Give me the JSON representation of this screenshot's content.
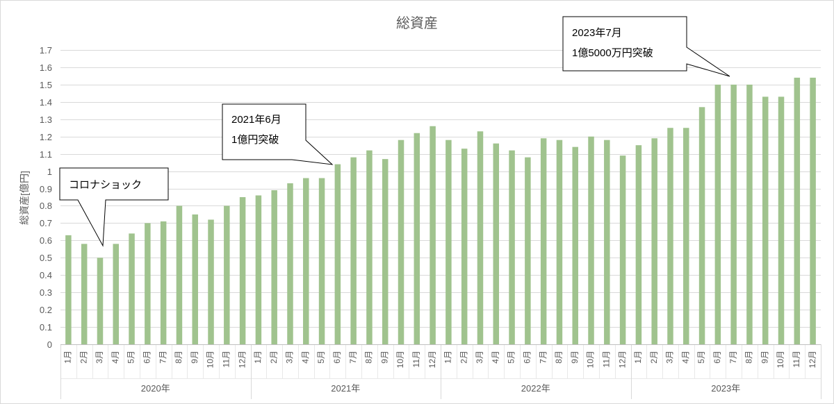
{
  "chart_data": {
    "type": "bar",
    "title": "総資産",
    "ylabel": "総資産[億円]",
    "ylim": [
      0,
      1.7
    ],
    "yticks": [
      "0",
      "0.1",
      "0.2",
      "0.3",
      "0.4",
      "0.5",
      "0.6",
      "0.7",
      "0.8",
      "0.9",
      "1",
      "1.1",
      "1.2",
      "1.3",
      "1.4",
      "1.5",
      "1.6",
      "1.7"
    ],
    "grid": true,
    "legend": "none",
    "color": "#a0c38e",
    "category_levels": {
      "months": [
        "1月",
        "2月",
        "3月",
        "4月",
        "5月",
        "6月",
        "7月",
        "8月",
        "9月",
        "10月",
        "11月",
        "12月"
      ],
      "years": [
        "2020年",
        "2021年",
        "2022年",
        "2023年"
      ]
    },
    "values": [
      [
        0.63,
        0.58,
        0.5,
        0.58,
        0.64,
        0.7,
        0.71,
        0.8,
        0.75,
        0.72,
        0.8,
        0.85
      ],
      [
        0.86,
        0.89,
        0.93,
        0.96,
        0.96,
        1.04,
        1.08,
        1.12,
        1.07,
        1.18,
        1.22,
        1.26
      ],
      [
        1.18,
        1.13,
        1.23,
        1.16,
        1.12,
        1.08,
        1.19,
        1.18,
        1.14,
        1.2,
        1.18,
        1.09
      ],
      [
        1.15,
        1.19,
        1.25,
        1.25,
        1.37,
        1.5,
        1.5,
        1.5,
        1.43,
        1.43,
        1.54,
        1.54
      ]
    ],
    "annotations": [
      {
        "lines": [
          "コロナショック"
        ]
      },
      {
        "lines": [
          "2021年6月",
          "1億円突破"
        ]
      },
      {
        "lines": [
          "2023年7月",
          "1億5000万円突破"
        ]
      }
    ]
  }
}
